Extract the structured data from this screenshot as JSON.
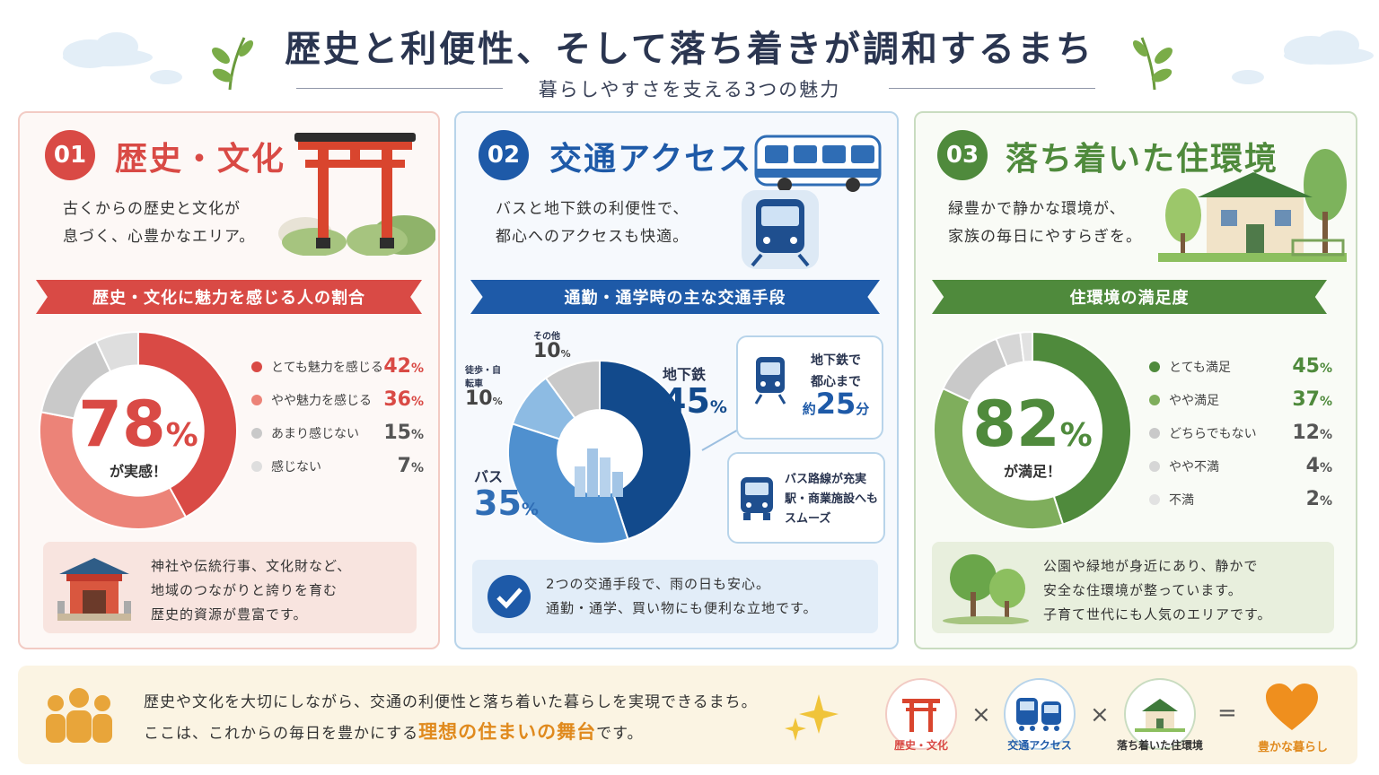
{
  "header": {
    "title": "歴史と利便性、そして落ち着きが調和するまち",
    "subtitle": "暮らしやすさを支える3つの魅力"
  },
  "card1": {
    "number": "01",
    "title": "歴史・文化",
    "desc": [
      "古くからの歴史と文化が",
      "息づく、心豊かなエリア。"
    ],
    "ribbon": "歴史・文化に魅力を感じる人の割合",
    "center_value": "78",
    "center_unit": "%",
    "center_caption": "が実感！",
    "note": [
      "神社や伝統行事、文化財など、",
      "地域のつながりと誇りを育む",
      "歴史的資源が豊富です。"
    ],
    "color": "#d94a45"
  },
  "card2": {
    "number": "02",
    "title": "交通アクセス",
    "desc": [
      "バスと地下鉄の利便性で、",
      "都心へのアクセスも快適。"
    ],
    "ribbon": "通勤・通学時の主な交通手段",
    "callout1": {
      "line1": "地下鉄で",
      "line2": "都心まで",
      "prefix": "約",
      "value": "25",
      "unit": "分"
    },
    "callout2": [
      "バス路線が充実",
      "駅・商業施設へも",
      "スムーズ"
    ],
    "note": [
      "2つの交通手段で、雨の日も安心。",
      "通勤・通学、買い物にも便利な立地です。"
    ],
    "color": "#1e5aa8"
  },
  "card3": {
    "number": "03",
    "title": "落ち着いた住環境",
    "desc": [
      "緑豊かで静かな環境が、",
      "家族の毎日にやすらぎを。"
    ],
    "ribbon": "住環境の満足度",
    "center_value": "82",
    "center_unit": "%",
    "center_caption": "が満足！",
    "note": [
      "公園や緑地が身近にあり、静かで",
      "安全な住環境が整っています。",
      "子育て世代にも人気のエリアです。"
    ],
    "color": "#4f8a3c"
  },
  "footer": {
    "line1": "歴史や文化を大切にしながら、交通の利便性と落ち着いた暮らしを実現できるまち。",
    "line2_pre": "ここは、これからの毎日を豊かにする",
    "line2_em": "理想の住まいの舞台",
    "line2_post": "です。",
    "badges": [
      "歴史・文化",
      "交通アクセス",
      "落ち着いた住環境"
    ],
    "times": "×",
    "equals": "=",
    "result": "豊かな暮らし"
  },
  "chart_data": [
    {
      "type": "pie",
      "title": "歴史・文化に魅力を感じる人の割合",
      "categories": [
        "とても魅力を感じる",
        "やや魅力を感じる",
        "あまり感じない",
        "感じない"
      ],
      "values": [
        42,
        36,
        15,
        7
      ],
      "unit": "%",
      "colors": [
        "#d94a45",
        "#ec8378",
        "#c9c9c9",
        "#dedede"
      ]
    },
    {
      "type": "pie",
      "title": "通勤・通学時の主な交通手段",
      "categories": [
        "地下鉄",
        "バス",
        "徒歩・自転車",
        "その他"
      ],
      "values": [
        45,
        35,
        10,
        10
      ],
      "unit": "%",
      "colors": [
        "#124a8c",
        "#4f90cf",
        "#8dbbe3",
        "#c9c9c9"
      ]
    },
    {
      "type": "pie",
      "title": "住環境の満足度",
      "categories": [
        "とても満足",
        "やや満足",
        "どちらでもない",
        "やや不満",
        "不満"
      ],
      "values": [
        45,
        37,
        12,
        4,
        2
      ],
      "unit": "%",
      "colors": [
        "#4f8a3c",
        "#7fae5c",
        "#c9c9c9",
        "#d6d6d6",
        "#e2e2e2"
      ]
    }
  ]
}
